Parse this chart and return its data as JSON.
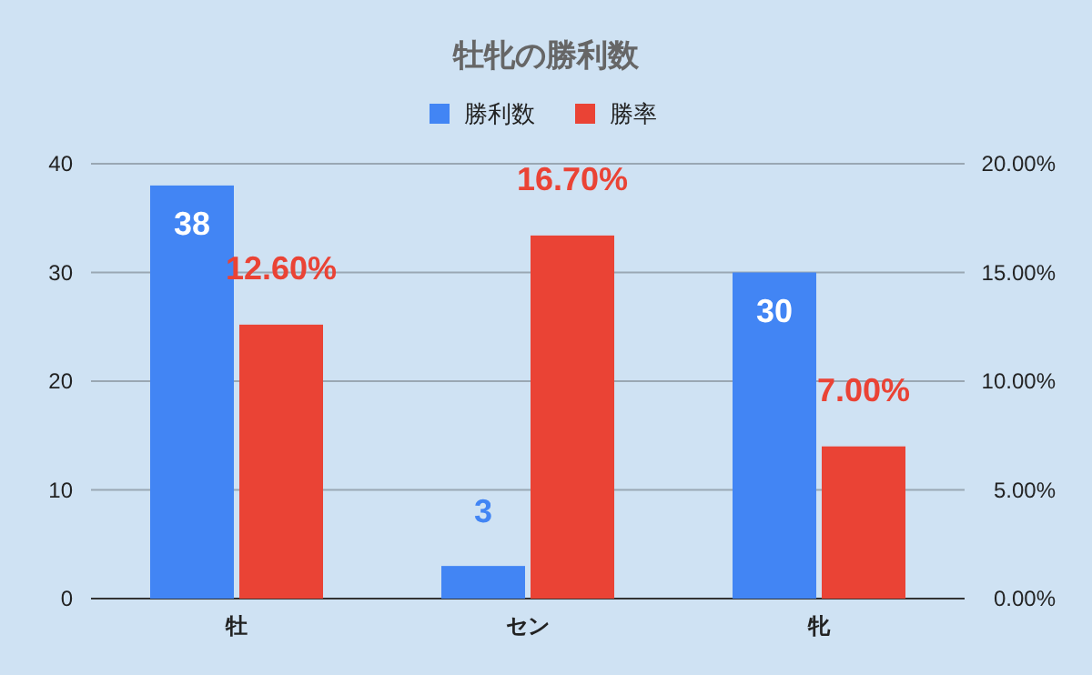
{
  "chart_data": {
    "type": "bar",
    "title": "牡牝の勝利数",
    "categories": [
      "牡",
      "セン",
      "牝"
    ],
    "series": [
      {
        "name": "勝利数",
        "color": "#4285f4",
        "values": [
          38,
          3,
          30
        ],
        "value_labels": [
          "38",
          "3",
          "30"
        ]
      },
      {
        "name": "勝率",
        "color": "#ea4335",
        "axis": "y2",
        "values": [
          12.6,
          16.7,
          7.0
        ],
        "value_labels": [
          "12.60%",
          "16.70%",
          "7.00%"
        ]
      }
    ],
    "ylim": [
      0,
      40
    ],
    "yticks": [
      0,
      10,
      20,
      30,
      40
    ],
    "y2lim": [
      0,
      20
    ],
    "y2ticks": [
      {
        "value": 0,
        "label": "0.00%"
      },
      {
        "value": 5,
        "label": "5.00%"
      },
      {
        "value": 10,
        "label": "10.00%"
      },
      {
        "value": 15,
        "label": "15.00%"
      },
      {
        "value": 20,
        "label": "20.00%"
      }
    ],
    "grid": "y",
    "legend": "top"
  }
}
